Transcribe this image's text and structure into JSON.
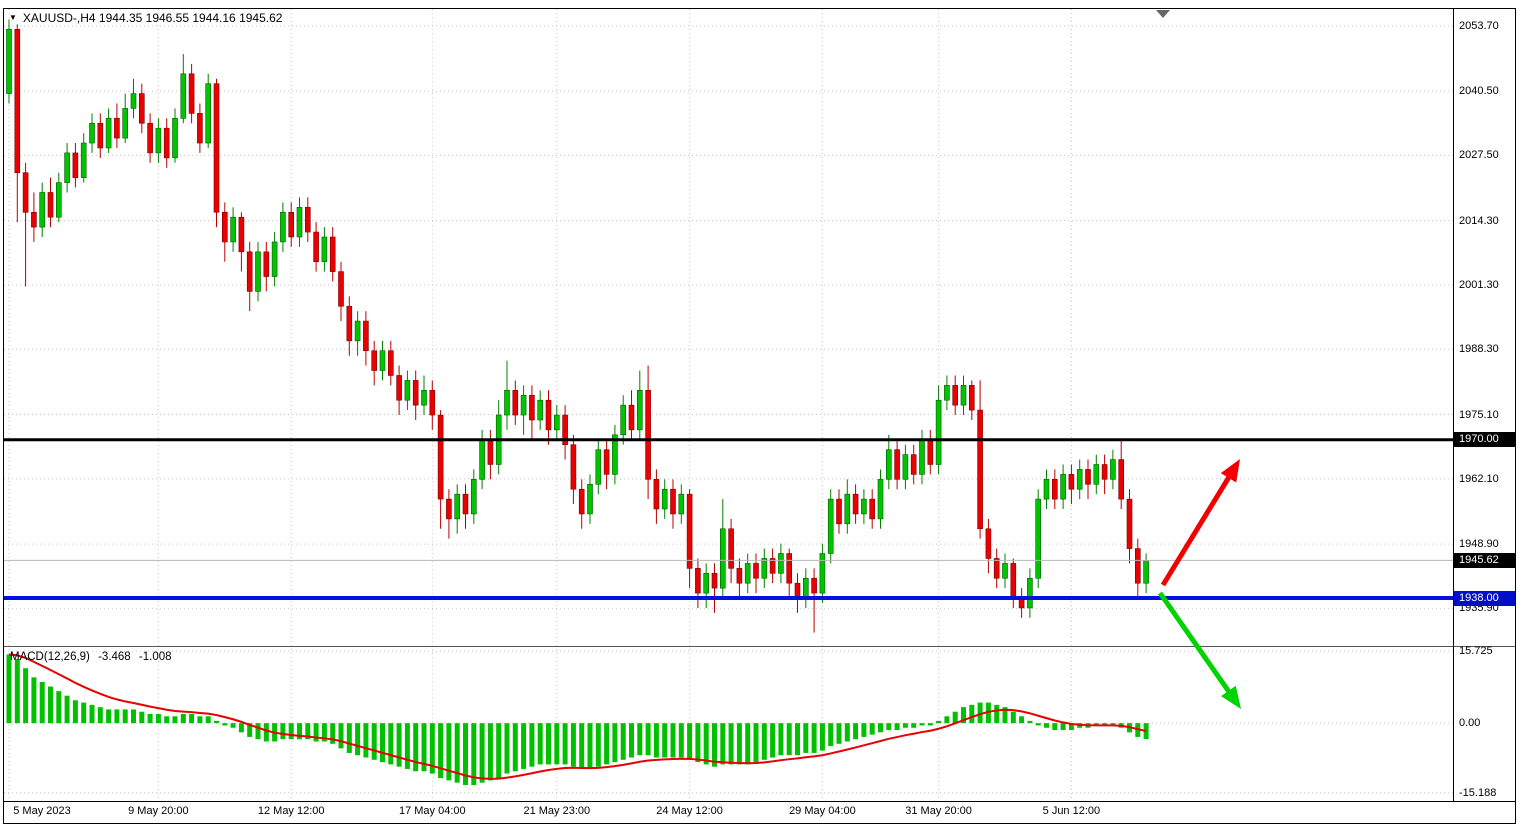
{
  "header": {
    "title": "XAUUSD-,H4 1944.35 1946.55 1944.16 1945.62",
    "dropdown_icon": "▼"
  },
  "indicator": {
    "name": "MACD(12,26,9)",
    "macd_value": "-3.468",
    "signal_value": "-1.008"
  },
  "chart_data": {
    "type": "candlestick",
    "symbol": "XAUUSD-",
    "timeframe": "H4",
    "ohlc_display": {
      "open": "1944.35",
      "high": "1946.55",
      "low": "1944.16",
      "close": "1945.62"
    },
    "ylim": [
      1928.3,
      2057.1
    ],
    "grid": "dotted",
    "price_ticks": [
      {
        "text": "2053.70",
        "price": 2053.7
      },
      {
        "text": "2040.50",
        "price": 2040.5
      },
      {
        "text": "2027.50",
        "price": 2027.5
      },
      {
        "text": "2014.30",
        "price": 2014.3
      },
      {
        "text": "2001.30",
        "price": 2001.3
      },
      {
        "text": "1988.30",
        "price": 1988.3
      },
      {
        "text": "1975.10",
        "price": 1975.1
      },
      {
        "text": "1962.10",
        "price": 1962.1
      },
      {
        "text": "1948.90",
        "price": 1948.9
      },
      {
        "text": "1935.90",
        "price": 1935.9
      }
    ],
    "hlines": [
      {
        "price": 1970.0,
        "color": "#000000",
        "width": 3,
        "tag": "1970.00",
        "tag_bg": "#000000"
      },
      {
        "price": 1945.62,
        "color": "#b8b8b8",
        "width": 1,
        "tag": "1945.62",
        "tag_bg": "#000000"
      },
      {
        "price": 1938.0,
        "color": "#0012e0",
        "width": 4,
        "tag": "1938.00",
        "tag_bg": "#0010c8"
      }
    ],
    "time_labels": [
      {
        "text": "5 May 2023",
        "i": 0
      },
      {
        "text": "9 May 20:00",
        "i": 18
      },
      {
        "text": "12 May 12:00",
        "i": 34
      },
      {
        "text": "17 May 04:00",
        "i": 51
      },
      {
        "text": "21 May 23:00",
        "i": 66
      },
      {
        "text": "24 May 12:00",
        "i": 82
      },
      {
        "text": "29 May 04:00",
        "i": 98
      },
      {
        "text": "31 May 20:00",
        "i": 112
      },
      {
        "text": "5 Jun 12:00",
        "i": 128
      }
    ],
    "colors": {
      "up": {
        "body": "#00c400",
        "border": "#005c00",
        "wick": "#008000"
      },
      "down": {
        "body": "#ea0000",
        "border": "#7c0000",
        "wick": "#b80000"
      }
    },
    "candles": [
      [
        2040,
        2055,
        2038,
        2053
      ],
      [
        2053,
        2054,
        2014,
        2024
      ],
      [
        2024,
        2026,
        2001,
        2016
      ],
      [
        2016,
        2020,
        2010,
        2013
      ],
      [
        2013,
        2022,
        2011,
        2020
      ],
      [
        2020,
        2023,
        2013,
        2015
      ],
      [
        2015,
        2024,
        2014,
        2022
      ],
      [
        2022,
        2030,
        2020,
        2028
      ],
      [
        2028,
        2030,
        2021,
        2023
      ],
      [
        2023,
        2032,
        2022,
        2030
      ],
      [
        2030,
        2036,
        2028,
        2034
      ],
      [
        2034,
        2036,
        2027,
        2029
      ],
      [
        2029,
        2037,
        2028,
        2035
      ],
      [
        2035,
        2038,
        2029,
        2031
      ],
      [
        2031,
        2040,
        2030,
        2037
      ],
      [
        2037,
        2043,
        2035,
        2040
      ],
      [
        2040,
        2042,
        2032,
        2034
      ],
      [
        2034,
        2036,
        2026,
        2028
      ],
      [
        2028,
        2035,
        2026,
        2033
      ],
      [
        2033,
        2035,
        2025,
        2027
      ],
      [
        2027,
        2037,
        2026,
        2035
      ],
      [
        2035,
        2048,
        2034,
        2044
      ],
      [
        2044,
        2046,
        2034,
        2036
      ],
      [
        2036,
        2038,
        2028,
        2030
      ],
      [
        2030,
        2044,
        2029,
        2042
      ],
      [
        2042,
        2043,
        2013,
        2016
      ],
      [
        2016,
        2018,
        2006,
        2010
      ],
      [
        2010,
        2017,
        2008,
        2015
      ],
      [
        2015,
        2016,
        2004,
        2008
      ],
      [
        2008,
        2010,
        1996,
        2000
      ],
      [
        2000,
        2010,
        1998,
        2008
      ],
      [
        2008,
        2010,
        2000,
        2003
      ],
      [
        2003,
        2012,
        2001,
        2010
      ],
      [
        2010,
        2018,
        2008,
        2016
      ],
      [
        2016,
        2018,
        2009,
        2011
      ],
      [
        2011,
        2019,
        2009,
        2017
      ],
      [
        2017,
        2019,
        2010,
        2012
      ],
      [
        2012,
        2014,
        2004,
        2006
      ],
      [
        2006,
        2013,
        2004,
        2011
      ],
      [
        2011,
        2013,
        2002,
        2004
      ],
      [
        2004,
        2006,
        1994,
        1997
      ],
      [
        1997,
        1999,
        1987,
        1990
      ],
      [
        1990,
        1996,
        1987,
        1994
      ],
      [
        1994,
        1996,
        1985,
        1988
      ],
      [
        1988,
        1990,
        1981,
        1984
      ],
      [
        1984,
        1990,
        1982,
        1988
      ],
      [
        1988,
        1990,
        1981,
        1983
      ],
      [
        1983,
        1985,
        1975,
        1978
      ],
      [
        1978,
        1984,
        1976,
        1982
      ],
      [
        1982,
        1984,
        1974,
        1977
      ],
      [
        1977,
        1983,
        1975,
        1980
      ],
      [
        1980,
        1982,
        1972,
        1975
      ],
      [
        1975,
        1976,
        1952,
        1958
      ],
      [
        1958,
        1960,
        1950,
        1954
      ],
      [
        1954,
        1961,
        1951,
        1959
      ],
      [
        1959,
        1961,
        1952,
        1955
      ],
      [
        1955,
        1964,
        1953,
        1962
      ],
      [
        1962,
        1972,
        1960,
        1970
      ],
      [
        1970,
        1972,
        1962,
        1965
      ],
      [
        1965,
        1978,
        1963,
        1975
      ],
      [
        1975,
        1986,
        1972,
        1980
      ],
      [
        1980,
        1982,
        1973,
        1975
      ],
      [
        1975,
        1981,
        1971,
        1979
      ],
      [
        1979,
        1981,
        1970,
        1974
      ],
      [
        1974,
        1980,
        1972,
        1978
      ],
      [
        1978,
        1980,
        1969,
        1972
      ],
      [
        1972,
        1977,
        1970,
        1975
      ],
      [
        1975,
        1977,
        1966,
        1969
      ],
      [
        1969,
        1971,
        1957,
        1960
      ],
      [
        1960,
        1962,
        1952,
        1955
      ],
      [
        1955,
        1963,
        1953,
        1961
      ],
      [
        1961,
        1970,
        1959,
        1968
      ],
      [
        1968,
        1970,
        1960,
        1963
      ],
      [
        1963,
        1973,
        1961,
        1971
      ],
      [
        1971,
        1979,
        1969,
        1977
      ],
      [
        1977,
        1980,
        1970,
        1972
      ],
      [
        1972,
        1984,
        1970,
        1980
      ],
      [
        1980,
        1985,
        1958,
        1962
      ],
      [
        1962,
        1964,
        1953,
        1956
      ],
      [
        1956,
        1962,
        1954,
        1960
      ],
      [
        1960,
        1962,
        1952,
        1955
      ],
      [
        1955,
        1961,
        1953,
        1959
      ],
      [
        1959,
        1960,
        1940,
        1944
      ],
      [
        1944,
        1946,
        1936,
        1939
      ],
      [
        1939,
        1945,
        1936,
        1943
      ],
      [
        1943,
        1945,
        1935,
        1940
      ],
      [
        1940,
        1958,
        1938,
        1952
      ],
      [
        1952,
        1954,
        1941,
        1944
      ],
      [
        1944,
        1946,
        1938,
        1941
      ],
      [
        1941,
        1947,
        1939,
        1945
      ],
      [
        1945,
        1947,
        1939,
        1942
      ],
      [
        1942,
        1948,
        1940,
        1946
      ],
      [
        1946,
        1948,
        1941,
        1943
      ],
      [
        1943,
        1949,
        1941,
        1947
      ],
      [
        1947,
        1948,
        1938,
        1941
      ],
      [
        1941,
        1943,
        1935,
        1938
      ],
      [
        1938,
        1944,
        1936,
        1942
      ],
      [
        1942,
        1944,
        1931,
        1939
      ],
      [
        1939,
        1949,
        1937,
        1947
      ],
      [
        1947,
        1960,
        1945,
        1958
      ],
      [
        1958,
        1960,
        1951,
        1953
      ],
      [
        1953,
        1962,
        1951,
        1959
      ],
      [
        1959,
        1961,
        1953,
        1955
      ],
      [
        1955,
        1960,
        1953,
        1958
      ],
      [
        1958,
        1960,
        1952,
        1954
      ],
      [
        1954,
        1964,
        1952,
        1962
      ],
      [
        1962,
        1971,
        1960,
        1968
      ],
      [
        1968,
        1970,
        1960,
        1962
      ],
      [
        1962,
        1969,
        1960,
        1967
      ],
      [
        1967,
        1969,
        1961,
        1963
      ],
      [
        1963,
        1972,
        1961,
        1970
      ],
      [
        1970,
        1972,
        1963,
        1965
      ],
      [
        1965,
        1981,
        1963,
        1978
      ],
      [
        1978,
        1983,
        1976,
        1981
      ],
      [
        1981,
        1983,
        1975,
        1977
      ],
      [
        1977,
        1983,
        1975,
        1981
      ],
      [
        1981,
        1982,
        1974,
        1976
      ],
      [
        1976,
        1982,
        1950,
        1952
      ],
      [
        1952,
        1954,
        1943,
        1946
      ],
      [
        1946,
        1948,
        1940,
        1942
      ],
      [
        1942,
        1947,
        1940,
        1945
      ],
      [
        1945,
        1946,
        1936,
        1938
      ],
      [
        1938,
        1940,
        1934,
        1936
      ],
      [
        1936,
        1944,
        1934,
        1942
      ],
      [
        1942,
        1960,
        1940,
        1958
      ],
      [
        1958,
        1964,
        1956,
        1962
      ],
      [
        1962,
        1964,
        1956,
        1958
      ],
      [
        1958,
        1965,
        1956,
        1963
      ],
      [
        1963,
        1965,
        1957,
        1960
      ],
      [
        1960,
        1966,
        1958,
        1964
      ],
      [
        1964,
        1966,
        1958,
        1961
      ],
      [
        1961,
        1967,
        1959,
        1965
      ],
      [
        1965,
        1967,
        1959,
        1962
      ],
      [
        1962,
        1968,
        1960,
        1966
      ],
      [
        1966,
        1970,
        1956,
        1958
      ],
      [
        1958,
        1960,
        1945,
        1948
      ],
      [
        1948,
        1950,
        1938,
        1941
      ],
      [
        1941,
        1947,
        1939,
        1945.62
      ]
    ],
    "macd": {
      "label": "MACD(12,26,9)",
      "macd_value": -3.468,
      "signal_value": -1.008,
      "ylim": [
        -17.0,
        16.2
      ],
      "ticks": [
        {
          "text": "15.725",
          "value": 15.725
        },
        {
          "text": "0.00",
          "value": 0
        },
        {
          "text": "-15.188",
          "value": -15.188
        }
      ],
      "hist_color": "#00c000",
      "signal_color": "#e60000",
      "signal_period": 9,
      "histogram": [
        15,
        14,
        12,
        10,
        9,
        8,
        7,
        6,
        5,
        4.5,
        4,
        3.5,
        3,
        3,
        3,
        3,
        2.5,
        2,
        2,
        1.5,
        1.5,
        2,
        2,
        1.5,
        1.5,
        0.5,
        -0.5,
        -1,
        -2,
        -3,
        -3.5,
        -4,
        -4,
        -3.5,
        -3.5,
        -3.5,
        -3.5,
        -4,
        -4,
        -4.5,
        -5.5,
        -6.5,
        -7,
        -7.5,
        -8,
        -8.5,
        -9,
        -9.5,
        -10,
        -10.5,
        -10.5,
        -11,
        -12,
        -12.5,
        -13,
        -13.5,
        -13.5,
        -13,
        -12.5,
        -12,
        -11,
        -10.5,
        -10,
        -9.5,
        -9,
        -9,
        -9,
        -9,
        -9.5,
        -10,
        -10,
        -9.5,
        -9,
        -8.5,
        -8,
        -7.5,
        -7,
        -7,
        -7.5,
        -7.5,
        -7.5,
        -7.5,
        -8,
        -8.5,
        -9,
        -9.5,
        -9,
        -9,
        -9,
        -9,
        -8.5,
        -8,
        -7.5,
        -7,
        -7,
        -7,
        -6.5,
        -6.5,
        -6,
        -5,
        -4.5,
        -4,
        -3.5,
        -3,
        -2.5,
        -2,
        -1.5,
        -1.5,
        -1,
        -1,
        -0.5,
        -0.5,
        0.5,
        1.5,
        2.5,
        3.5,
        4,
        4.5,
        4.5,
        4,
        3.5,
        2.5,
        1.5,
        0.5,
        -0.5,
        -1,
        -1.5,
        -1.5,
        -1.5,
        -1,
        -1,
        -0.5,
        -0.5,
        -0.5,
        -1,
        -2,
        -3,
        -3.468
      ]
    },
    "annotations": [
      {
        "name": "bullish-arrow",
        "color": "#f20000",
        "from": [
          1159,
          576
        ],
        "to": [
          1236,
          450
        ]
      },
      {
        "name": "bearish-arrow",
        "color": "#00d400",
        "from": [
          1156,
          584
        ],
        "to": [
          1237,
          700
        ]
      }
    ]
  }
}
